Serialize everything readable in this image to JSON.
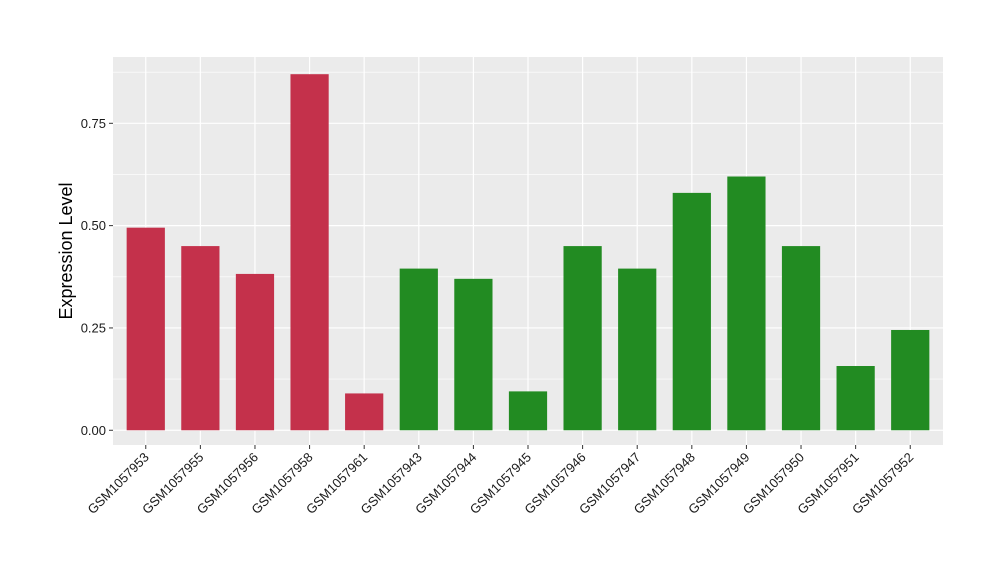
{
  "chart_data": {
    "type": "bar",
    "title": "",
    "xlabel": "",
    "ylabel": "Expression Level",
    "ylim": [
      -0.036,
      0.912
    ],
    "yticks": [
      0.0,
      0.25,
      0.5,
      0.75
    ],
    "ytick_labels": [
      "0.00",
      "0.25",
      "0.50",
      "0.75"
    ],
    "grid": true,
    "legend": "none",
    "colors": {
      "panel_background": "#EBEBEB",
      "grid_major": "#FFFFFF",
      "group_a": "#C4314B",
      "group_b": "#228B22"
    },
    "categories": [
      "GSM1057953",
      "GSM1057955",
      "GSM1057956",
      "GSM1057958",
      "GSM1057961",
      "GSM1057943",
      "GSM1057944",
      "GSM1057945",
      "GSM1057946",
      "GSM1057947",
      "GSM1057948",
      "GSM1057949",
      "GSM1057950",
      "GSM1057951",
      "GSM1057952"
    ],
    "values": [
      0.495,
      0.45,
      0.382,
      0.87,
      0.09,
      0.395,
      0.37,
      0.095,
      0.45,
      0.395,
      0.58,
      0.62,
      0.45,
      0.157,
      0.245
    ],
    "bar_groups": [
      "group_a",
      "group_a",
      "group_a",
      "group_a",
      "group_a",
      "group_b",
      "group_b",
      "group_b",
      "group_b",
      "group_b",
      "group_b",
      "group_b",
      "group_b",
      "group_b",
      "group_b"
    ]
  }
}
